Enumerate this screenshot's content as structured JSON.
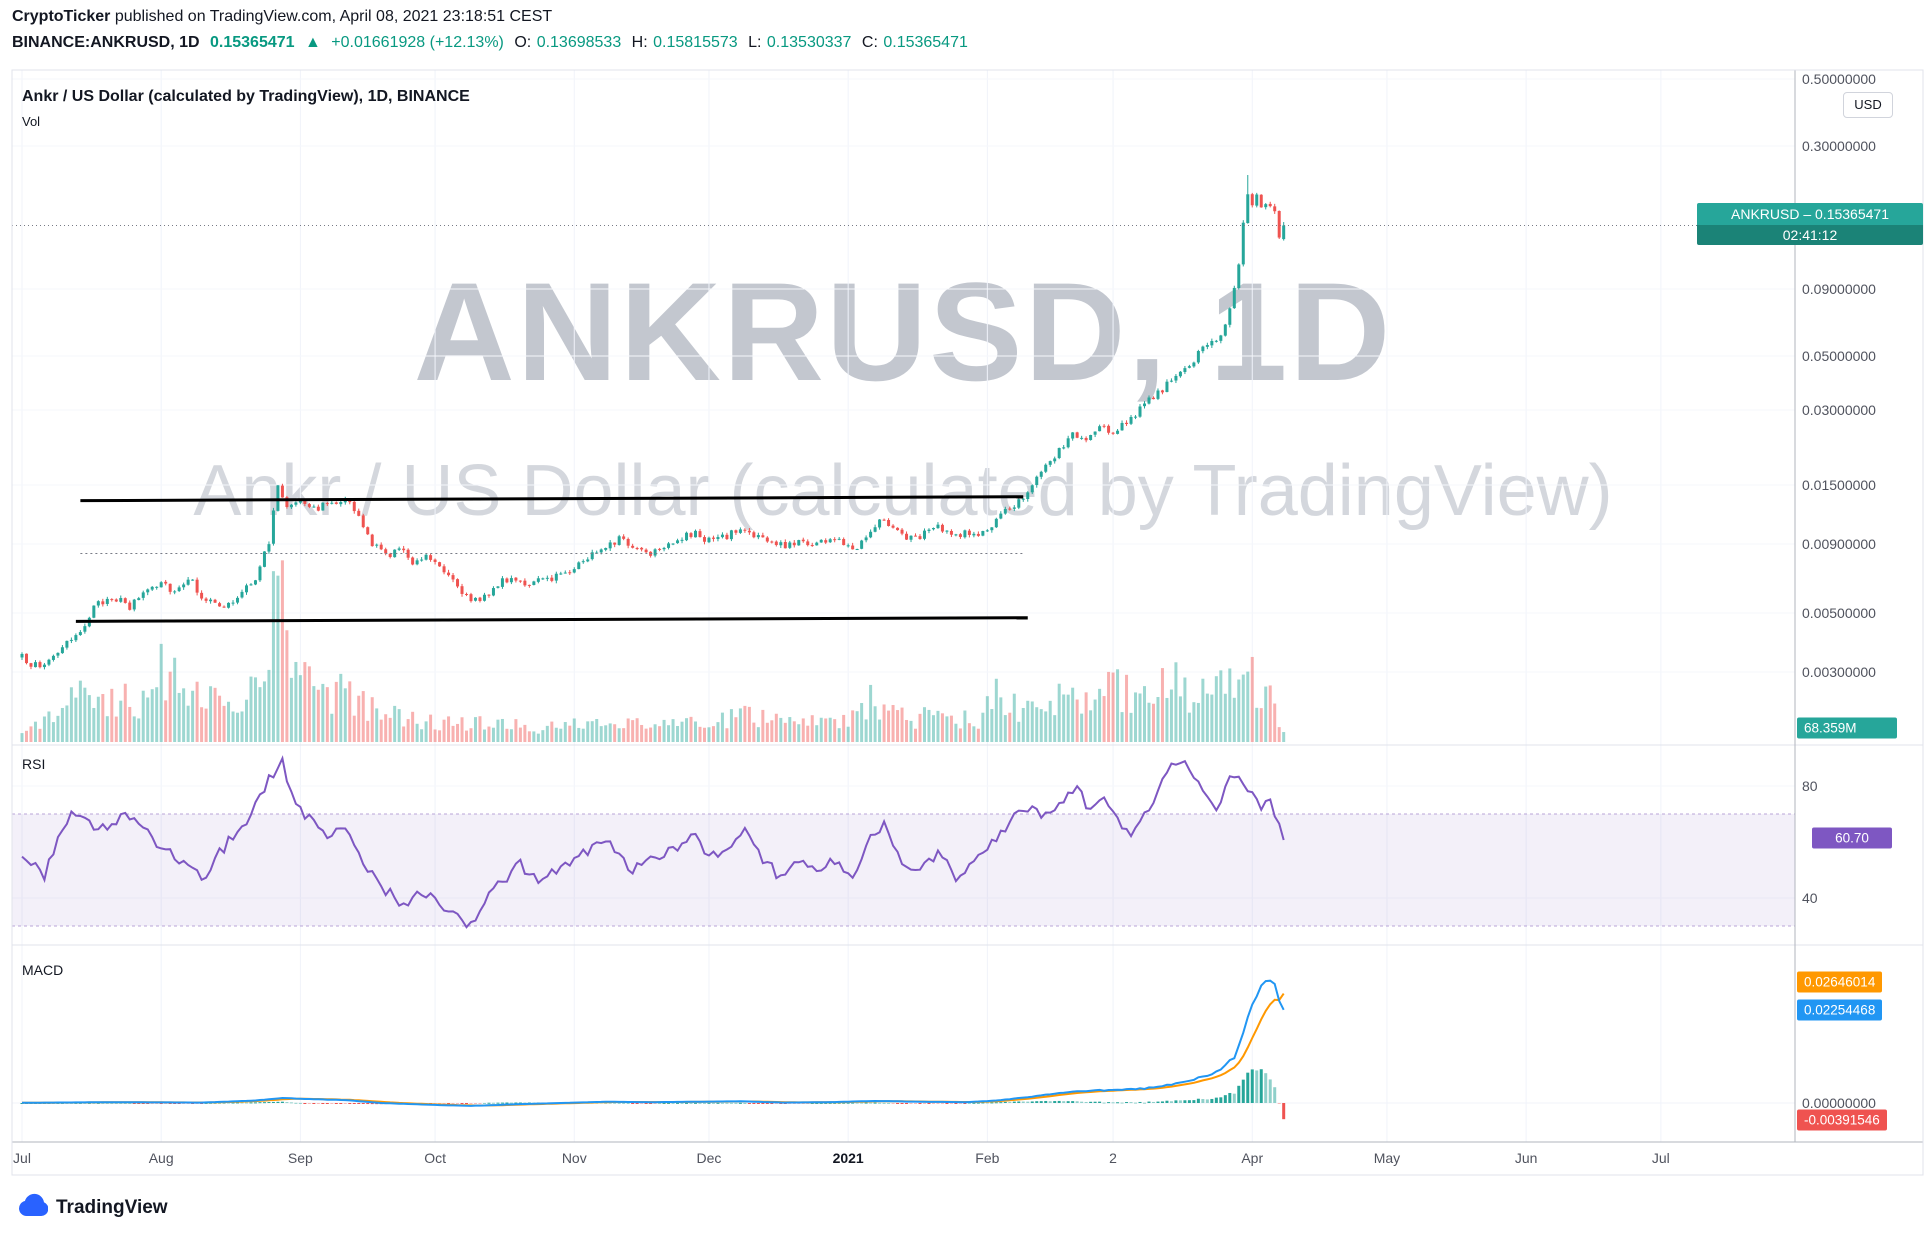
{
  "header": {
    "byline_bold": "CryptoTicker",
    "byline_rest": " published on TradingView.com, April 08, 2021 23:18:51 CEST",
    "symbol_line": {
      "symbol": "BINANCE:ANKRUSD, 1D",
      "last": "0.15365471",
      "up_arrow": "▲",
      "change": "+0.01661928 (+12.13%)",
      "o_label": "O:",
      "o": "0.13698533",
      "h_label": "H:",
      "h": "0.15815573",
      "l_label": "L:",
      "l": "0.13530337",
      "c_label": "C:",
      "c": "0.15365471"
    }
  },
  "legend": {
    "title": "Ankr / US Dollar (calculated by TradingView), 1D, BINANCE",
    "vol_label": "Vol"
  },
  "watermark": {
    "line1": "ANKRUSD, 1D",
    "line2": "Ankr / US Dollar (calculated by TradingView)"
  },
  "panes": {
    "rsi_label": "RSI",
    "macd_label": "MACD"
  },
  "axis": {
    "currency_button": "USD",
    "price_ticks": [
      "0.50000000",
      "0.30000000",
      "0.09000000",
      "0.05000000",
      "0.03000000",
      "0.01500000",
      "0.00900000",
      "0.00500000",
      "0.00300000"
    ],
    "rsi_ticks": [
      80,
      40
    ],
    "macd_ticks": [
      "0.00000000"
    ],
    "time_labels": [
      {
        "label": "Jul",
        "day": 0
      },
      {
        "label": "Aug",
        "day": 31
      },
      {
        "label": "Sep",
        "day": 62
      },
      {
        "label": "Oct",
        "day": 92
      },
      {
        "label": "Nov",
        "day": 123
      },
      {
        "label": "Dec",
        "day": 153
      },
      {
        "label": "2021",
        "day": 184,
        "bold": true
      },
      {
        "label": "Feb",
        "day": 215
      },
      {
        "label": "2",
        "day": 243
      },
      {
        "label": "Apr",
        "day": 274
      },
      {
        "label": "May",
        "day": 304
      },
      {
        "label": "Jun",
        "day": 335
      },
      {
        "label": "Jul",
        "day": 365
      }
    ]
  },
  "floating_labels": {
    "price_text": "ANKRUSD – 0.15365471",
    "price_countdown": "02:41:12",
    "volume_text": "68.359M",
    "rsi_text": "60.70",
    "macd_signal_text": "0.02646014",
    "macd_line_text": "0.02254468",
    "macd_hist_text": "-0.00391546"
  },
  "footer": {
    "logo_text": "TradingView"
  },
  "colors": {
    "up": "#26a69a",
    "down": "#ef5350",
    "rsi_line": "#7e57c2",
    "macd_line": "#2196f3",
    "signal_line": "#ff9800",
    "hist_pos": "#26a69a",
    "hist_pos_weak": "#8fd0ca",
    "hist_neg": "#ef5350",
    "hist_neg_weak": "#f8b9b7",
    "trend": "#000000",
    "accent_teal": "#089981"
  },
  "chart_data": {
    "type": "candlestick",
    "title": "Ankr / US Dollar (calculated by TradingView), 1D, BINANCE",
    "price_scale": "logarithmic",
    "ylim": [
      0.003,
      0.5
    ],
    "x_start": "2020-07-01",
    "days": 282,
    "last_price": 0.15365471,
    "last_bar": {
      "open": 0.13698533,
      "high": 0.15815573,
      "low": 0.13530337,
      "close": 0.15365471
    },
    "peak": {
      "day": 273,
      "high": 0.235
    },
    "volume_last_label": "68.359M",
    "close_anchors": [
      [
        0,
        0.0034
      ],
      [
        4,
        0.0031
      ],
      [
        8,
        0.0036
      ],
      [
        12,
        0.004
      ],
      [
        16,
        0.0052
      ],
      [
        20,
        0.0058
      ],
      [
        24,
        0.0052
      ],
      [
        27,
        0.006
      ],
      [
        31,
        0.0066
      ],
      [
        34,
        0.006
      ],
      [
        37,
        0.0068
      ],
      [
        40,
        0.0058
      ],
      [
        44,
        0.0052
      ],
      [
        48,
        0.0056
      ],
      [
        52,
        0.0068
      ],
      [
        55,
        0.009
      ],
      [
        57,
        0.0148
      ],
      [
        59,
        0.0125
      ],
      [
        62,
        0.0135
      ],
      [
        65,
        0.0122
      ],
      [
        68,
        0.0128
      ],
      [
        72,
        0.0135
      ],
      [
        75,
        0.0112
      ],
      [
        78,
        0.009
      ],
      [
        81,
        0.0082
      ],
      [
        84,
        0.0086
      ],
      [
        87,
        0.0078
      ],
      [
        90,
        0.0082
      ],
      [
        93,
        0.0076
      ],
      [
        97,
        0.0064
      ],
      [
        100,
        0.0054
      ],
      [
        103,
        0.0058
      ],
      [
        106,
        0.0064
      ],
      [
        110,
        0.0068
      ],
      [
        113,
        0.0063
      ],
      [
        116,
        0.0066
      ],
      [
        120,
        0.007
      ],
      [
        123,
        0.0074
      ],
      [
        126,
        0.008
      ],
      [
        130,
        0.009
      ],
      [
        133,
        0.0094
      ],
      [
        136,
        0.0088
      ],
      [
        140,
        0.0084
      ],
      [
        143,
        0.009
      ],
      [
        147,
        0.0095
      ],
      [
        150,
        0.0098
      ],
      [
        153,
        0.0093
      ],
      [
        156,
        0.0095
      ],
      [
        160,
        0.0102
      ],
      [
        163,
        0.0098
      ],
      [
        166,
        0.0092
      ],
      [
        170,
        0.0088
      ],
      [
        173,
        0.0093
      ],
      [
        176,
        0.009
      ],
      [
        180,
        0.0094
      ],
      [
        183,
        0.0091
      ],
      [
        186,
        0.0088
      ],
      [
        189,
        0.0103
      ],
      [
        192,
        0.0112
      ],
      [
        195,
        0.01
      ],
      [
        198,
        0.0094
      ],
      [
        201,
        0.0099
      ],
      [
        204,
        0.0104
      ],
      [
        207,
        0.0096
      ],
      [
        210,
        0.01
      ],
      [
        213,
        0.0096
      ],
      [
        216,
        0.0105
      ],
      [
        219,
        0.0118
      ],
      [
        222,
        0.0132
      ],
      [
        225,
        0.015
      ],
      [
        228,
        0.0175
      ],
      [
        231,
        0.0205
      ],
      [
        234,
        0.024
      ],
      [
        237,
        0.0225
      ],
      [
        240,
        0.0255
      ],
      [
        243,
        0.0245
      ],
      [
        246,
        0.027
      ],
      [
        249,
        0.03
      ],
      [
        252,
        0.034
      ],
      [
        255,
        0.038
      ],
      [
        258,
        0.042
      ],
      [
        261,
        0.048
      ],
      [
        264,
        0.056
      ],
      [
        267,
        0.06
      ],
      [
        269,
        0.075
      ],
      [
        271,
        0.11
      ],
      [
        272,
        0.16
      ],
      [
        273,
        0.205
      ],
      [
        274,
        0.185
      ],
      [
        275,
        0.195
      ],
      [
        276,
        0.18
      ],
      [
        277,
        0.185
      ],
      [
        278,
        0.175
      ],
      [
        279,
        0.168
      ],
      [
        280,
        0.137
      ],
      [
        281,
        0.15365471
      ]
    ],
    "volume_anchors_rel": [
      [
        0,
        0.1
      ],
      [
        5,
        0.14
      ],
      [
        10,
        0.22
      ],
      [
        14,
        0.3
      ],
      [
        18,
        0.22
      ],
      [
        22,
        0.28
      ],
      [
        26,
        0.2
      ],
      [
        31,
        0.45
      ],
      [
        35,
        0.38
      ],
      [
        40,
        0.3
      ],
      [
        45,
        0.22
      ],
      [
        50,
        0.28
      ],
      [
        55,
        0.55
      ],
      [
        57,
        1.0
      ],
      [
        60,
        0.55
      ],
      [
        64,
        0.35
      ],
      [
        68,
        0.28
      ],
      [
        72,
        0.3
      ],
      [
        76,
        0.22
      ],
      [
        80,
        0.18
      ],
      [
        85,
        0.15
      ],
      [
        90,
        0.14
      ],
      [
        95,
        0.12
      ],
      [
        100,
        0.12
      ],
      [
        105,
        0.1
      ],
      [
        110,
        0.1
      ],
      [
        115,
        0.09
      ],
      [
        120,
        0.1
      ],
      [
        125,
        0.12
      ],
      [
        130,
        0.14
      ],
      [
        135,
        0.12
      ],
      [
        140,
        0.1
      ],
      [
        145,
        0.12
      ],
      [
        150,
        0.13
      ],
      [
        155,
        0.12
      ],
      [
        160,
        0.18
      ],
      [
        165,
        0.14
      ],
      [
        170,
        0.12
      ],
      [
        175,
        0.12
      ],
      [
        180,
        0.12
      ],
      [
        185,
        0.14
      ],
      [
        189,
        0.28
      ],
      [
        193,
        0.2
      ],
      [
        198,
        0.14
      ],
      [
        203,
        0.16
      ],
      [
        208,
        0.14
      ],
      [
        213,
        0.14
      ],
      [
        217,
        0.3
      ],
      [
        221,
        0.22
      ],
      [
        225,
        0.2
      ],
      [
        229,
        0.24
      ],
      [
        233,
        0.35
      ],
      [
        237,
        0.28
      ],
      [
        241,
        0.42
      ],
      [
        245,
        0.3
      ],
      [
        249,
        0.26
      ],
      [
        253,
        0.3
      ],
      [
        257,
        0.38
      ],
      [
        261,
        0.3
      ],
      [
        265,
        0.42
      ],
      [
        269,
        0.35
      ],
      [
        273,
        0.45
      ],
      [
        276,
        0.3
      ],
      [
        279,
        0.22
      ],
      [
        281,
        0.1
      ]
    ],
    "trendlines": [
      {
        "day1": 13,
        "price1": 0.0131,
        "day2": 223,
        "price2": 0.01355,
        "color": "#000000",
        "style": "solid"
      },
      {
        "day1": 12,
        "price1": 0.00465,
        "day2": 224,
        "price2": 0.0048,
        "color": "#000000",
        "style": "solid"
      },
      {
        "day1": 13,
        "price1": 0.0083,
        "day2": 223,
        "price2": 0.0083,
        "color": "#787b86",
        "style": "dotted"
      }
    ],
    "rsi": {
      "last": 60.7,
      "band": [
        30,
        70
      ],
      "ticks": [
        80,
        40
      ],
      "anchors": [
        [
          0,
          55
        ],
        [
          5,
          48
        ],
        [
          11,
          72
        ],
        [
          17,
          64
        ],
        [
          24,
          70
        ],
        [
          31,
          58
        ],
        [
          36,
          52
        ],
        [
          40,
          47
        ],
        [
          45,
          58
        ],
        [
          50,
          68
        ],
        [
          56,
          85
        ],
        [
          58,
          88
        ],
        [
          61,
          72
        ],
        [
          64,
          68
        ],
        [
          68,
          62
        ],
        [
          72,
          66
        ],
        [
          76,
          52
        ],
        [
          80,
          44
        ],
        [
          85,
          38
        ],
        [
          89,
          42
        ],
        [
          95,
          36
        ],
        [
          99,
          29
        ],
        [
          103,
          38
        ],
        [
          107,
          46
        ],
        [
          111,
          52
        ],
        [
          115,
          46
        ],
        [
          119,
          50
        ],
        [
          124,
          54
        ],
        [
          128,
          60
        ],
        [
          132,
          58
        ],
        [
          136,
          50
        ],
        [
          140,
          53
        ],
        [
          145,
          58
        ],
        [
          150,
          62
        ],
        [
          153,
          55
        ],
        [
          157,
          57
        ],
        [
          161,
          63
        ],
        [
          165,
          54
        ],
        [
          169,
          47
        ],
        [
          173,
          53
        ],
        [
          177,
          50
        ],
        [
          181,
          54
        ],
        [
          185,
          47
        ],
        [
          189,
          62
        ],
        [
          192,
          67
        ],
        [
          196,
          52
        ],
        [
          200,
          49
        ],
        [
          204,
          57
        ],
        [
          208,
          47
        ],
        [
          212,
          53
        ],
        [
          216,
          60
        ],
        [
          220,
          67
        ],
        [
          224,
          72
        ],
        [
          228,
          70
        ],
        [
          232,
          76
        ],
        [
          235,
          80
        ],
        [
          238,
          71
        ],
        [
          241,
          76
        ],
        [
          244,
          67
        ],
        [
          247,
          63
        ],
        [
          250,
          70
        ],
        [
          253,
          78
        ],
        [
          256,
          88
        ],
        [
          258,
          90
        ],
        [
          261,
          82
        ],
        [
          263,
          78
        ],
        [
          266,
          72
        ],
        [
          268,
          80
        ],
        [
          270,
          84
        ],
        [
          272,
          80
        ],
        [
          274,
          76
        ],
        [
          276,
          72
        ],
        [
          278,
          74
        ],
        [
          280,
          66
        ],
        [
          281,
          60.7
        ]
      ]
    },
    "macd": {
      "last_macd": 0.02254468,
      "last_signal": 0.02646014,
      "last_hist": -0.00391546,
      "anchors": [
        [
          0,
          5e-05
        ],
        [
          20,
          0.0002
        ],
        [
          40,
          0.0001
        ],
        [
          52,
          0.0006
        ],
        [
          58,
          0.0012
        ],
        [
          65,
          0.0009
        ],
        [
          72,
          0.0007
        ],
        [
          80,
          0.0
        ],
        [
          90,
          -0.0004
        ],
        [
          100,
          -0.0007
        ],
        [
          110,
          -0.0003
        ],
        [
          120,
          0.0
        ],
        [
          130,
          0.0003
        ],
        [
          140,
          0.0002
        ],
        [
          150,
          0.0003
        ],
        [
          160,
          0.0004
        ],
        [
          170,
          0.0001
        ],
        [
          180,
          0.0002
        ],
        [
          190,
          0.0005
        ],
        [
          200,
          0.0003
        ],
        [
          210,
          0.0002
        ],
        [
          217,
          0.0006
        ],
        [
          224,
          0.0014
        ],
        [
          231,
          0.0024
        ],
        [
          238,
          0.003
        ],
        [
          244,
          0.0032
        ],
        [
          250,
          0.0035
        ],
        [
          256,
          0.0045
        ],
        [
          262,
          0.006
        ],
        [
          266,
          0.0075
        ],
        [
          270,
          0.011
        ],
        [
          273,
          0.02
        ],
        [
          275,
          0.026
        ],
        [
          276,
          0.0285
        ],
        [
          277,
          0.0295
        ],
        [
          278,
          0.03
        ],
        [
          279,
          0.0285
        ],
        [
          280,
          0.0255
        ],
        [
          281,
          0.02254468
        ]
      ]
    }
  }
}
